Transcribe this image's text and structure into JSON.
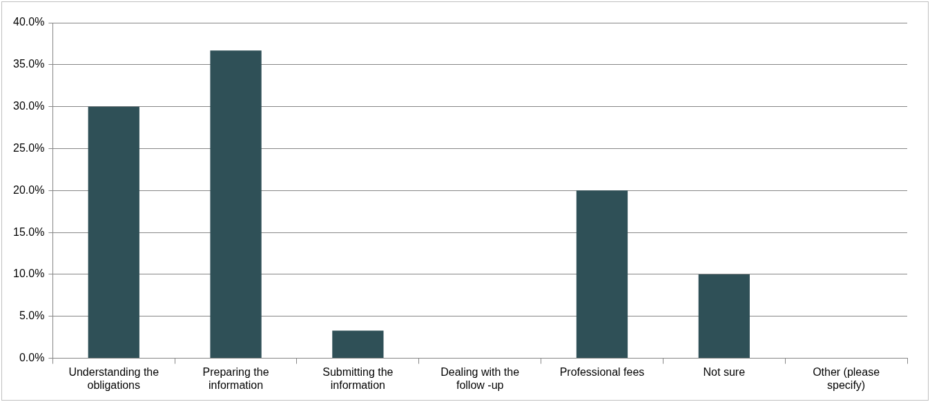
{
  "chart_data": {
    "type": "bar",
    "categories": [
      "Understanding the obligations",
      "Preparing the information",
      "Submitting the information",
      "Dealing with the follow -up",
      "Professional fees",
      "Not sure",
      "Other (please specify)"
    ],
    "values": [
      30.0,
      36.7,
      3.3,
      0,
      20.0,
      10.0,
      0
    ],
    "color": "#2f5057",
    "ylim": [
      0,
      40
    ],
    "yticks": [
      {
        "value": 0,
        "label": "0.0%"
      },
      {
        "value": 5,
        "label": "5.0%"
      },
      {
        "value": 10,
        "label": "10.0%"
      },
      {
        "value": 15,
        "label": "15.0%"
      },
      {
        "value": 20,
        "label": "20.0%"
      },
      {
        "value": 25,
        "label": "25.0%"
      },
      {
        "value": 30,
        "label": "30.0%"
      },
      {
        "value": 35,
        "label": "35.0%"
      },
      {
        "value": 40,
        "label": "40.0%"
      }
    ],
    "grid": "y",
    "legend": false
  }
}
